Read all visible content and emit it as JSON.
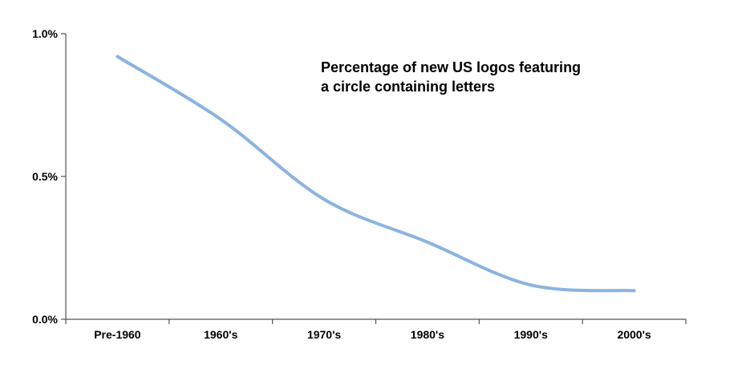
{
  "chart_data": {
    "type": "line",
    "title_lines": [
      "Percentage of new US logos featuring",
      "a circle containing letters"
    ],
    "categories": [
      "Pre-1960",
      "1960's",
      "1970's",
      "1980's",
      "1990's",
      "2000's"
    ],
    "series": [
      {
        "values": [
          0.92,
          0.7,
          0.42,
          0.27,
          0.12,
          0.1
        ]
      }
    ],
    "y_tick_labels": [
      "0.0%",
      "0.5%",
      "1.0%"
    ],
    "y_ticks": [
      0.0,
      0.5,
      1.0
    ],
    "ylim": [
      0,
      1.0
    ],
    "grid": false,
    "line_color": "#8ab4e0"
  }
}
